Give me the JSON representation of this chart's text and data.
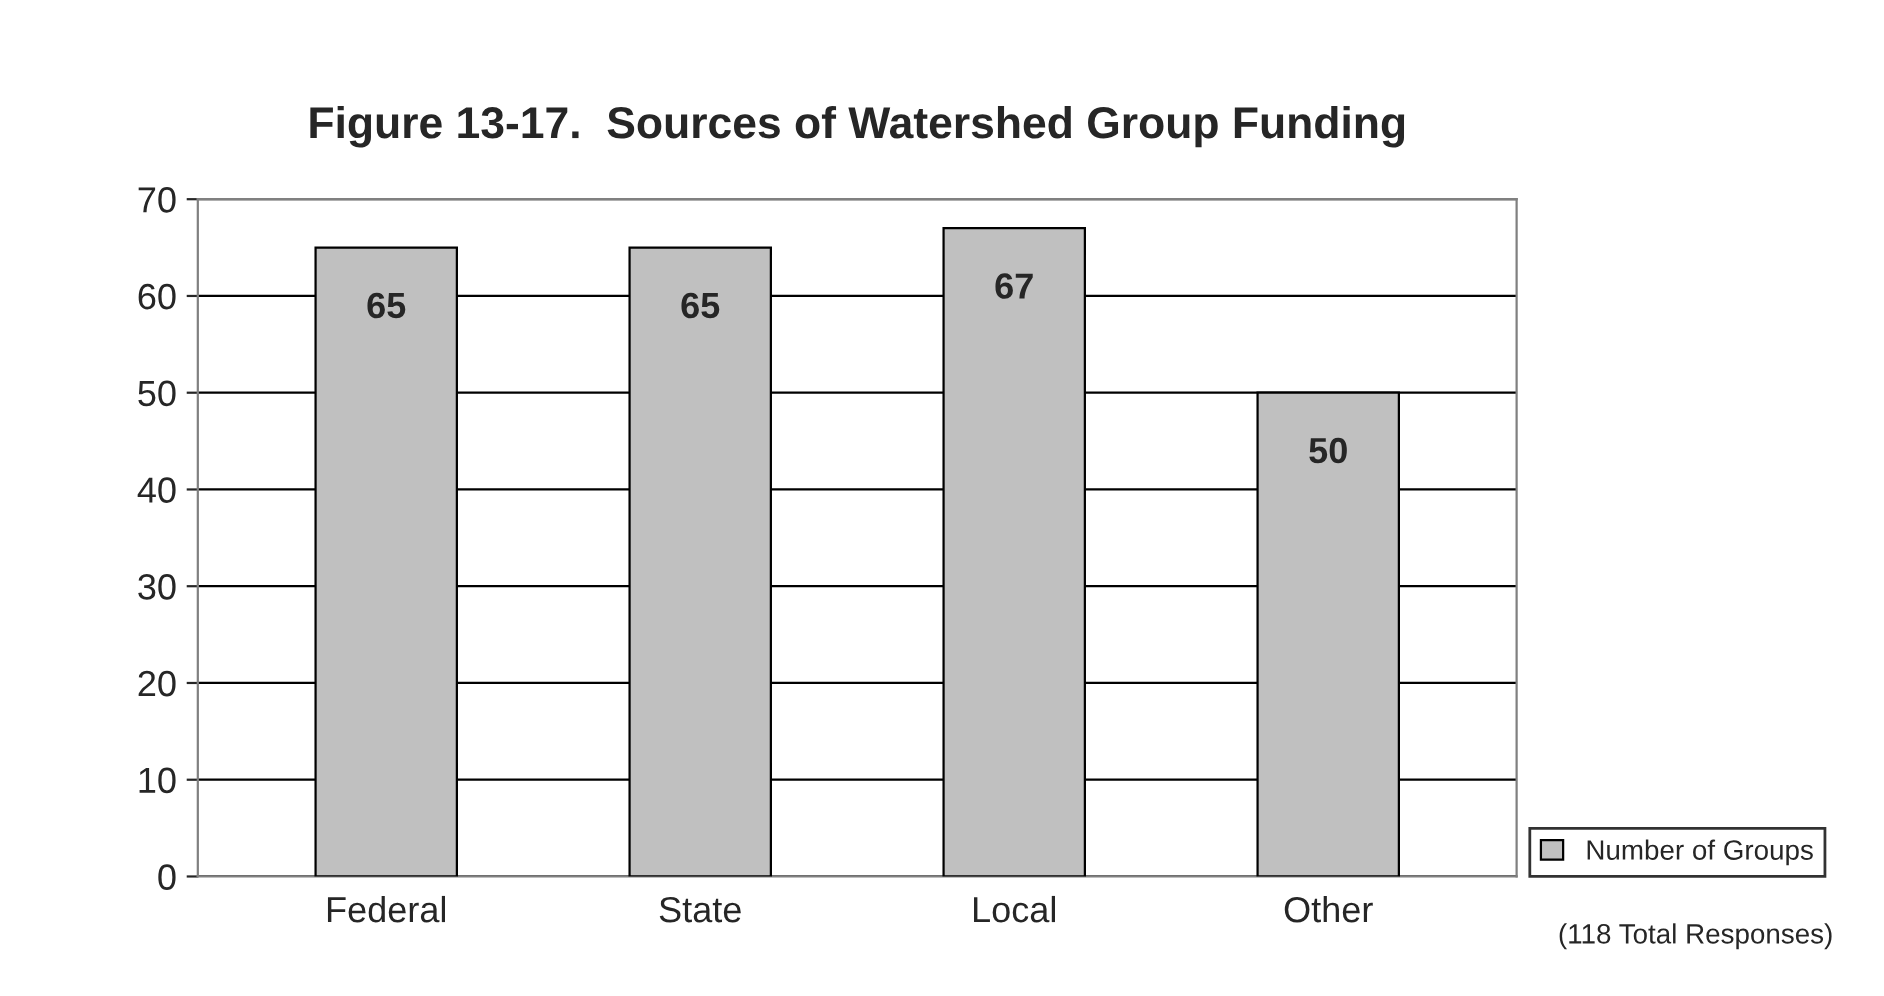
{
  "chart_data": {
    "type": "bar",
    "title": "Figure 13-17.  Sources of Watershed Group Funding",
    "categories": [
      "Federal",
      "State",
      "Local",
      "Other"
    ],
    "series": [
      {
        "name": "Number of Groups",
        "color": "#c0c0c0",
        "values": [
          65,
          65,
          67,
          50
        ]
      }
    ],
    "ylim": [
      0,
      70
    ],
    "yticks": [
      0,
      10,
      20,
      30,
      40,
      50,
      60,
      70
    ],
    "grid": "y",
    "data_labels": true,
    "legend": "bottom right",
    "annotations": [
      "(118 Total Responses)"
    ]
  }
}
